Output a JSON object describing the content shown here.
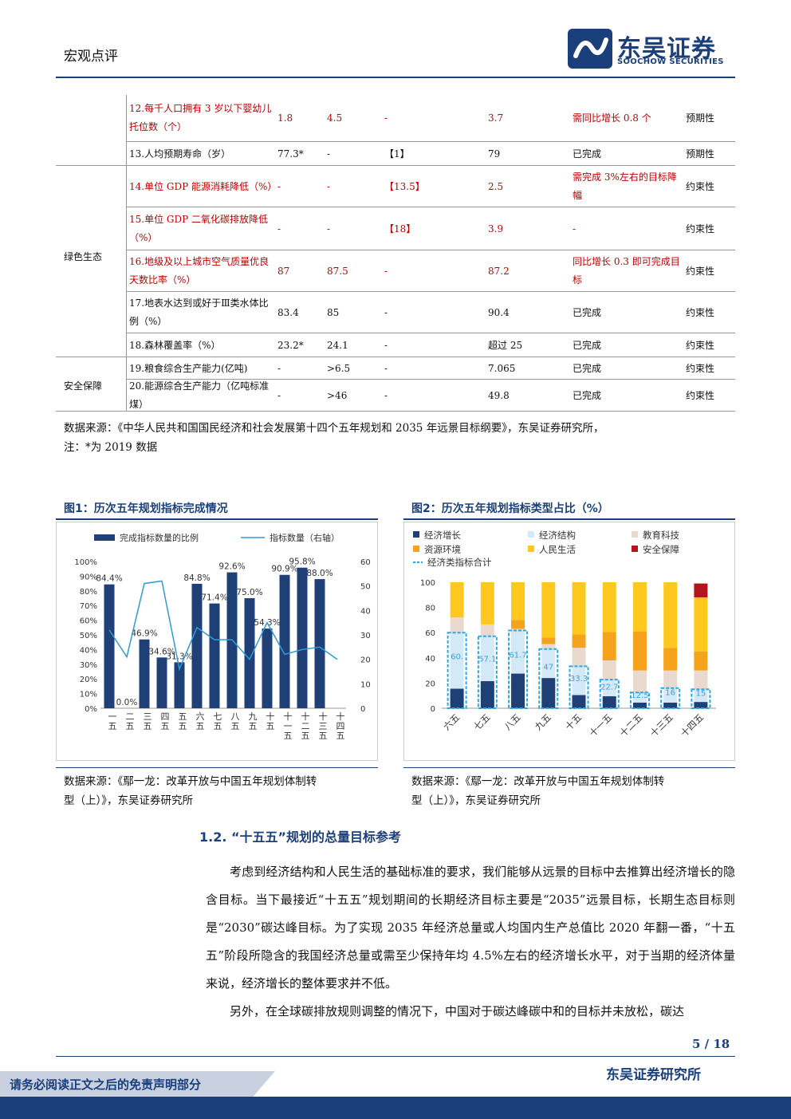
{
  "header": {
    "section_label": "宏观点评",
    "logo_cn": "东吴证券",
    "logo_en": "SOOCHOW SECURITIES"
  },
  "table": {
    "rows": [
      {
        "name": "12.每千人口拥有 3 岁以下婴幼儿托位数（个）",
        "v2020": "1.8",
        "v2025": "4.5",
        "cum": "-",
        "latest": "3.7",
        "note": "需同比增长 0.8 个",
        "attr": "预期性",
        "red": true
      },
      {
        "name": "13.人均预期寿命（岁）",
        "v2020": "77.3*",
        "v2025": "-",
        "cum": "【1】",
        "latest": "79",
        "note": "已完成",
        "attr": "预期性",
        "red": false
      },
      {
        "name": "14.单位 GDP 能源消耗降低（%）",
        "v2020": "-",
        "v2025": "-",
        "cum": "【13.5】",
        "latest": "2.5",
        "note": "需完成 3%左右的目标降幅",
        "attr": "约束性",
        "red": true
      },
      {
        "name": "15.单位 GDP 二氧化碳排放降低（%）",
        "v2020": "-",
        "v2025": "-",
        "cum": "【18】",
        "latest": "3.9",
        "note": "-",
        "attr": "约束性",
        "red": true
      },
      {
        "name": "16.地级及以上城市空气质量优良天数比率（%）",
        "v2020": "87",
        "v2025": "87.5",
        "cum": "-",
        "latest": "87.2",
        "note": "同比增长 0.3 即可完成目标",
        "attr": "约束性",
        "red": true
      },
      {
        "name": "17.地表水达到或好于Ⅲ类水体比例（%）",
        "v2020": "83.4",
        "v2025": "85",
        "cum": "-",
        "latest": "90.4",
        "note": "已完成",
        "attr": "约束性",
        "red": false
      },
      {
        "name": "18.森林覆盖率（%）",
        "v2020": "23.2*",
        "v2025": "24.1",
        "cum": "-",
        "latest": "超过 25",
        "note": "已完成",
        "attr": "约束性",
        "red": false
      },
      {
        "name": "19.粮食综合生产能力(亿吨)",
        "v2020": "-",
        "v2025": ">6.5",
        "cum": "-",
        "latest": "7.065",
        "note": "已完成",
        "attr": "约束性",
        "red": false
      },
      {
        "name": "20.能源综合生产能力（亿吨标准煤）",
        "v2020": "-",
        "v2025": ">46",
        "cum": "-",
        "latest": "49.8",
        "note": "已完成",
        "attr": "约束性",
        "red": false
      }
    ],
    "categories": [
      "绿色生态",
      "安全保障"
    ],
    "source_line1": "数据来源：《中华人民共和国国民经济和社会发展第十四个五年规划和 2035 年远景目标纲要》，东吴证券研究所，",
    "source_line2": "注：*为 2019 数据"
  },
  "fig1": {
    "title": "图1：历次五年规划指标完成情况",
    "source_line1": "数据来源：《鄢一龙：改革开放与中国五年规划体制转",
    "source_line2": "型（上）》，东吴证券研究所"
  },
  "fig2": {
    "title": "图2：历次五年规划指标类型占比（%）",
    "source_line1": "数据来源：《鄢一龙：改革开放与中国五年规划体制转",
    "source_line2": "型（上）》，东吴证券研究所"
  },
  "chart_data": [
    {
      "type": "bar",
      "legend": [
        "完成指标数量的比例",
        "指标数量（右轴）"
      ],
      "categories": [
        "一五",
        "二五",
        "三五",
        "四五",
        "五五",
        "六五",
        "七五",
        "八五",
        "九五",
        "十五",
        "十一五",
        "十二五",
        "十三五",
        "十四五"
      ],
      "series": [
        {
          "name": "完成指标数量的比例",
          "values": [
            84.4,
            0.0,
            46.9,
            34.6,
            31.3,
            84.8,
            71.4,
            92.6,
            75.0,
            54.3,
            90.9,
            95.8,
            88.0,
            null
          ],
          "labels": [
            "84.4%",
            "0.0%",
            "46.9%",
            "34.6%",
            "31.3%",
            "84.8%",
            "71.4%",
            "92.6%",
            "75.0%",
            "54.3%",
            "90.9%",
            "95.8%",
            "88.0%",
            ""
          ]
        },
        {
          "name": "指标数量（右轴）",
          "type": "line",
          "axis": "right",
          "values": [
            32,
            21,
            51,
            52,
            16,
            33,
            28,
            28,
            20,
            35,
            22,
            24,
            25,
            20
          ]
        }
      ],
      "ylim": [
        0,
        100
      ],
      "y_ticks": [
        "0%",
        "10%",
        "20%",
        "30%",
        "40%",
        "50%",
        "60%",
        "70%",
        "80%",
        "90%",
        "100%"
      ],
      "y2lim": [
        0,
        60
      ],
      "y2_ticks": [
        "0",
        "10",
        "20",
        "30",
        "40",
        "50",
        "60"
      ],
      "colors": {
        "bar": "#1f3f77",
        "line": "#2e9bd6"
      }
    },
    {
      "type": "bar",
      "stacked": true,
      "legend": [
        "经济增长",
        "经济结构",
        "教育科技",
        "资源环境",
        "人民生活",
        "安全保障",
        "经济类指标合计"
      ],
      "categories": [
        "六五",
        "七五",
        "八五",
        "九五",
        "十五",
        "十一五",
        "十二五",
        "十三五",
        "十四五"
      ],
      "series": [
        {
          "name": "经济增长",
          "values": [
            15.5,
            21.5,
            27.5,
            24.0,
            10.5,
            9.5,
            4.5,
            4.5,
            5.0
          ]
        },
        {
          "name": "经济结构",
          "values": [
            44.5,
            35.5,
            33.0,
            23.0,
            22.5,
            13.0,
            8.0,
            11.5,
            10.0
          ]
        },
        {
          "name": "教育科技",
          "values": [
            12.0,
            9.5,
            2.5,
            4.0,
            15.0,
            15.5,
            17.5,
            14.0,
            15.0
          ]
        },
        {
          "name": "资源环境",
          "values": [
            0.0,
            0.0,
            7.0,
            5.0,
            10.5,
            22.5,
            31.0,
            18.0,
            15.0
          ]
        },
        {
          "name": "人民生活",
          "values": [
            28.0,
            33.5,
            30.0,
            44.0,
            41.5,
            39.5,
            39.0,
            52.0,
            43.0
          ]
        },
        {
          "name": "安全保障",
          "values": [
            0,
            0,
            0,
            0,
            0,
            0,
            0,
            0,
            11.0
          ]
        }
      ],
      "economic_total_labels": [
        "60.",
        "57.1",
        "61.7",
        "47",
        "33.3",
        "22.7",
        "12.5",
        "16",
        "15"
      ],
      "economic_total_values": [
        60.0,
        57.1,
        61.7,
        47.0,
        33.3,
        22.7,
        12.5,
        16.0,
        15.0
      ],
      "ylim": [
        0,
        100
      ],
      "y_ticks": [
        "0",
        "20",
        "40",
        "60",
        "80",
        "100"
      ],
      "colors": {
        "经济增长": "#1f3f77",
        "经济结构": "#d4e9f7",
        "教育科技": "#ead9cf",
        "资源环境": "#f5a21c",
        "人民生活": "#ffc81e",
        "安全保障": "#b3141e",
        "经济类指标合计": "#2aa9e0"
      }
    }
  ],
  "section": {
    "title": "1.2.    “十五五”规划的总量目标参考",
    "para1": "考虑到经济结构和人民生活的基础标准的要求，我们能够从远景的目标中去推算出经济增长的隐含目标。当下最接近“十五五”规划期间的长期经济目标主要是“2035”远景目标，长期生态目标则是“2030”碳达峰目标。为了实现 2035 年经济总量或人均国内生产总值比 2020 年翻一番，“十五五”阶段所隐含的我国经济总量或需至少保持年均 4.5%左右的经济增长水平，对于当期的经济体量来说，经济增长的整体要求并不低。",
    "para2": "另外，在全球碳排放规则调整的情况下，中国对于碳达峰碳中和的目标并未放松，碳达"
  },
  "footer": {
    "page": "5 / 18",
    "institute": "东吴证券研究所",
    "disclaimer": "请务必阅读正文之后的免责声明部分"
  }
}
